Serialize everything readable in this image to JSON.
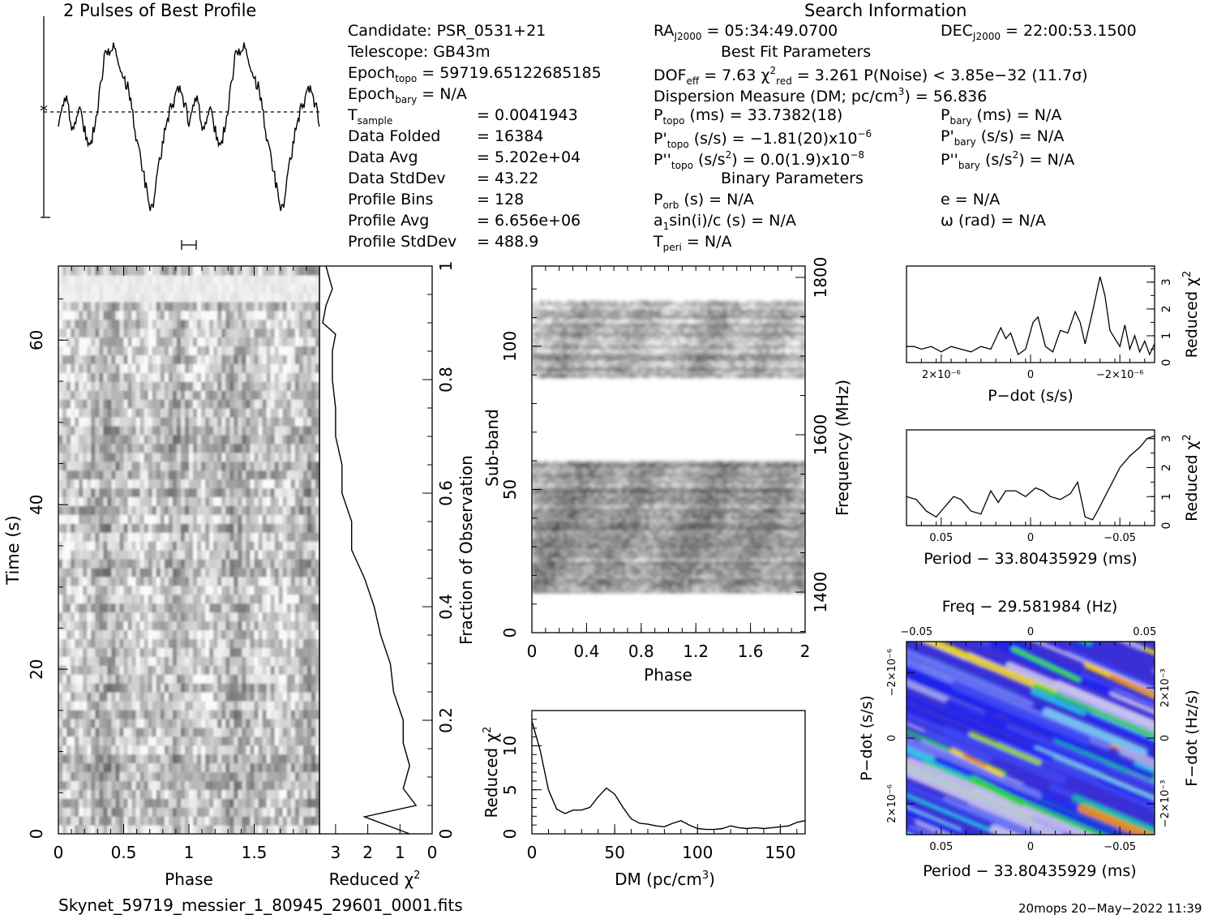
{
  "header": {
    "profile_title": "2 Pulses of Best Profile",
    "search_title": "Search Information",
    "binary_title": "Binary Parameters",
    "bestfit_title": "Best Fit Parameters"
  },
  "candidate": {
    "candidate": "Candidate:   PSR_0531+21",
    "telescope": "Telescope:   GB43m",
    "epoch_topo_label": "Epoch",
    "epoch_topo_sub": "topo",
    "epoch_topo_val": " = 59719.65122685185",
    "epoch_bary_label": "Epoch",
    "epoch_bary_sub": "bary",
    "epoch_bary_val": " = N/A",
    "tsample_label": "T",
    "tsample_sub": "sample",
    "tsample_val": "=   0.0041943",
    "folded_label": "Data Folded",
    "folded_val": "=   16384",
    "avg_label": "Data Avg",
    "avg_val": "=   5.202e+04",
    "std_label": "Data StdDev",
    "std_val": "=   43.22",
    "bins_label": "Profile Bins",
    "bins_val": "=   128",
    "pavg_label": "Profile Avg",
    "pavg_val": "=   6.656e+06",
    "pstd_label": "Profile StdDev",
    "pstd_val": "=   488.9"
  },
  "search": {
    "ra_label": "RA",
    "ra_sub": "J2000",
    "ra_val": " = 05:34:49.0700",
    "dec_label": "DEC",
    "dec_sub": "J2000",
    "dec_val": " = 22:00:53.1500",
    "dof_label": "DOF",
    "dof_sub": "eff",
    "dof_val": " = 7.63  χ",
    "chi_sup": "2",
    "chi_sub": "red",
    "chi_val": " = 3.261   P(Noise) < 3.85e−32   (11.7σ)",
    "dm_line": "Dispersion Measure (DM; pc/cm",
    "dm_sup": "3",
    "dm_val": ") = 56.836",
    "ptopo_label": "P",
    "ptopo_sub": "topo",
    "ptopo_val": " (ms) =  33.7382(18)",
    "pbary_label": "P",
    "pbary_sub": "bary",
    "pbary_val": " (ms) = N/A",
    "pdtopo_label": "P'",
    "pdtopo_sub": "topo",
    "pdtopo_val": " (s/s) = −1.81(20)x10",
    "pdtopo_sup": "−6",
    "pdbary_label": "P'",
    "pdbary_sub": "bary",
    "pdbary_val": " (s/s) = N/A",
    "pddtopo_label": "P''",
    "pddtopo_sub": "topo",
    "pddtopo_val": " (s/s",
    "pddtopo_sup1": "2",
    "pddtopo_val2": ") = 0.0(1.9)x10",
    "pddtopo_sup2": "−8",
    "pddbary_label": "P''",
    "pddbary_sub": "bary",
    "pddbary_val": " (s/s",
    "pddbary_sup": "2",
    "pddbary_val2": ") = N/A",
    "porb_label": "P",
    "porb_sub": "orb",
    "porb_val": " (s) = N/A",
    "e_val": "e = N/A",
    "a1_label": "a",
    "a1_sub": "1",
    "a1_val": "sin(i)/c (s) = N/A",
    "omega_val": "ω (rad) = N/A",
    "tperi_label": "T",
    "tperi_sub": "peri",
    "tperi_val": " = N/A"
  },
  "footer": {
    "filename": "Skynet_59719_messier_1_80945_29601_0001.fits",
    "stamp": "20mops 20−May−2022 11:39"
  },
  "chart_data": [
    {
      "type": "line",
      "id": "profile",
      "title": "2 Pulses of Best Profile",
      "x_range": [
        0,
        2
      ],
      "shape": "two pulses, each with twin peaks near phase 0.35 and 0.9, deep dips near phase 0.7",
      "anchors": [
        [
          0.0,
          0.48
        ],
        [
          0.06,
          0.68
        ],
        [
          0.1,
          0.45
        ],
        [
          0.16,
          0.6
        ],
        [
          0.24,
          0.35
        ],
        [
          0.3,
          0.6
        ],
        [
          0.36,
          0.92
        ],
        [
          0.42,
          0.95
        ],
        [
          0.48,
          0.78
        ],
        [
          0.54,
          0.7
        ],
        [
          0.6,
          0.4
        ],
        [
          0.66,
          0.18
        ],
        [
          0.7,
          0.03
        ],
        [
          0.73,
          0.06
        ],
        [
          0.78,
          0.3
        ],
        [
          0.84,
          0.55
        ],
        [
          0.92,
          0.7
        ],
        [
          0.98,
          0.6
        ]
      ]
    },
    {
      "type": "heatmap",
      "id": "time-phase",
      "xlabel": "Phase",
      "ylabel": "Time (s)",
      "x_range": [
        0,
        2
      ],
      "y_range": [
        0,
        69
      ],
      "xticks": [
        "0",
        "0.5",
        "1",
        "1.5"
      ],
      "yticks": [
        "0",
        "20",
        "40",
        "60"
      ],
      "colormap": "grayscale"
    },
    {
      "type": "line",
      "id": "time-chi",
      "xlabel": "Reduced χ",
      "xlabel_sup": "2",
      "ylabel": "Fraction of Observation",
      "x_range": [
        3.4,
        0
      ],
      "y_range": [
        0,
        1
      ],
      "xticks": [
        "3",
        "2",
        "1",
        "0"
      ],
      "yticks": [
        "0",
        "0.2",
        "0.4",
        "0.6",
        "0.8",
        "1"
      ],
      "y": [
        0.0,
        0.03,
        0.05,
        0.08,
        0.12,
        0.16,
        0.2,
        0.25,
        0.3,
        0.35,
        0.4,
        0.45,
        0.5,
        0.55,
        0.6,
        0.65,
        0.7,
        0.75,
        0.8,
        0.85,
        0.88,
        0.9,
        0.93,
        0.96,
        0.98,
        1.0
      ],
      "x": [
        0.7,
        2.1,
        0.5,
        0.9,
        0.7,
        0.9,
        0.9,
        1.2,
        1.3,
        1.6,
        1.8,
        2.1,
        2.5,
        2.5,
        2.8,
        2.8,
        3.0,
        3.0,
        3.1,
        3.1,
        3.0,
        3.4,
        3.3,
        3.1,
        3.2,
        3.3
      ]
    },
    {
      "type": "heatmap",
      "id": "subband-phase",
      "xlabel": "Phase",
      "ylabel": "Sub-band",
      "y2label": "Frequency (MHz)",
      "x_range": [
        0,
        2
      ],
      "y_range": [
        0,
        128
      ],
      "xticks": [
        "0",
        "0.4",
        "0.8",
        "1.2",
        "1.6",
        "2"
      ],
      "yticks": [
        "0",
        "50",
        "100"
      ],
      "y2ticks": [
        "1400",
        "1600",
        "1800"
      ],
      "bands": [
        [
          14,
          60
        ],
        [
          89,
          116
        ]
      ],
      "colormap": "grayscale"
    },
    {
      "type": "line",
      "id": "dm-chi",
      "xlabel": "DM (pc/cm",
      "xlabel_sup": "3",
      "xlabel_end": ")",
      "ylabel": "Reduced χ",
      "ylabel_sup": "2",
      "x_range": [
        0,
        165
      ],
      "y_range": [
        0,
        14
      ],
      "xticks": [
        "0",
        "50",
        "100",
        "150"
      ],
      "yticks": [
        "0",
        "5",
        "10"
      ],
      "x": [
        0,
        5,
        10,
        15,
        20,
        25,
        30,
        35,
        40,
        45,
        50,
        55,
        60,
        65,
        70,
        75,
        80,
        85,
        90,
        95,
        100,
        105,
        110,
        115,
        120,
        125,
        130,
        135,
        140,
        145,
        150,
        155,
        160,
        165
      ],
      "y": [
        12.8,
        9.5,
        5.0,
        2.8,
        2.3,
        2.7,
        2.7,
        3.0,
        4.2,
        5.2,
        4.5,
        3.0,
        1.7,
        1.2,
        1.1,
        0.9,
        0.8,
        1.2,
        1.5,
        1.0,
        0.6,
        0.5,
        0.5,
        0.6,
        0.9,
        0.7,
        0.6,
        0.7,
        0.6,
        0.7,
        0.8,
        0.9,
        1.3,
        1.5
      ]
    },
    {
      "type": "line",
      "id": "pdot-chi",
      "xlabel": "P−dot (s/s)",
      "ylabel": "Reduced χ",
      "ylabel_sup": "2",
      "x_range": [
        0,
        1
      ],
      "y_range": [
        0,
        3.6
      ],
      "xticks": [
        "2×10⁻⁶",
        "0",
        "−2×10⁻⁶"
      ],
      "yticks": [
        "0",
        "1",
        "2",
        "3"
      ],
      "x": [
        0,
        0.03,
        0.06,
        0.1,
        0.14,
        0.18,
        0.22,
        0.26,
        0.3,
        0.34,
        0.38,
        0.4,
        0.42,
        0.45,
        0.48,
        0.51,
        0.53,
        0.56,
        0.59,
        0.62,
        0.65,
        0.68,
        0.7,
        0.72,
        0.75,
        0.78,
        0.8,
        0.82,
        0.84,
        0.86,
        0.88,
        0.9,
        0.92,
        0.94,
        0.96,
        0.98,
        1.0
      ],
      "y": [
        0.6,
        0.6,
        0.5,
        0.6,
        0.4,
        0.6,
        0.5,
        0.4,
        0.6,
        0.5,
        1.3,
        0.9,
        1.1,
        0.3,
        0.5,
        1.5,
        1.7,
        0.6,
        0.4,
        1.2,
        1.1,
        1.9,
        1.5,
        0.7,
        1.9,
        3.2,
        2.5,
        1.2,
        0.9,
        0.6,
        1.4,
        0.5,
        1.0,
        0.4,
        0.8,
        0.3,
        0.7
      ]
    },
    {
      "type": "line",
      "id": "period-chi",
      "xlabel": "Period − 33.80435929 (ms)",
      "ylabel": "Reduced χ",
      "ylabel_sup": "2",
      "x_range": [
        0,
        1
      ],
      "y_range": [
        0,
        3.3
      ],
      "xticks": [
        "0.05",
        "0",
        "−0.05"
      ],
      "yticks": [
        "0",
        "1",
        "2",
        "3"
      ],
      "x": [
        0,
        0.04,
        0.08,
        0.12,
        0.15,
        0.19,
        0.22,
        0.26,
        0.3,
        0.34,
        0.37,
        0.4,
        0.44,
        0.48,
        0.52,
        0.55,
        0.58,
        0.62,
        0.66,
        0.69,
        0.72,
        0.75,
        0.77,
        0.8,
        0.83,
        0.86,
        0.9,
        0.94,
        0.97,
        1.0
      ],
      "y": [
        1.0,
        0.9,
        0.5,
        0.3,
        0.6,
        1.0,
        0.9,
        0.5,
        0.4,
        1.2,
        0.8,
        1.2,
        1.2,
        1.0,
        1.3,
        1.2,
        1.0,
        0.9,
        1.1,
        1.5,
        0.3,
        0.2,
        0.5,
        1.0,
        1.5,
        2.0,
        2.4,
        2.7,
        3.0,
        3.1
      ]
    },
    {
      "type": "heatmap",
      "id": "period-pdot",
      "title": "Freq − 29.581984 (Hz)",
      "xlabel": "Period − 33.80435929 (ms)",
      "ylabel": "P−dot (s/s)",
      "y2label": "F−dot (Hz/s)",
      "xticks": [
        "0.05",
        "0",
        "−0.05"
      ],
      "x2ticks": [
        "−0.05",
        "0",
        "0.05"
      ],
      "yticks": [
        "2×10⁻⁶",
        "0",
        "−2×10⁻⁶"
      ],
      "y2ticks": [
        "−2×10⁻³",
        "0",
        "2×10⁻³"
      ],
      "colormap": "rainbow"
    }
  ]
}
